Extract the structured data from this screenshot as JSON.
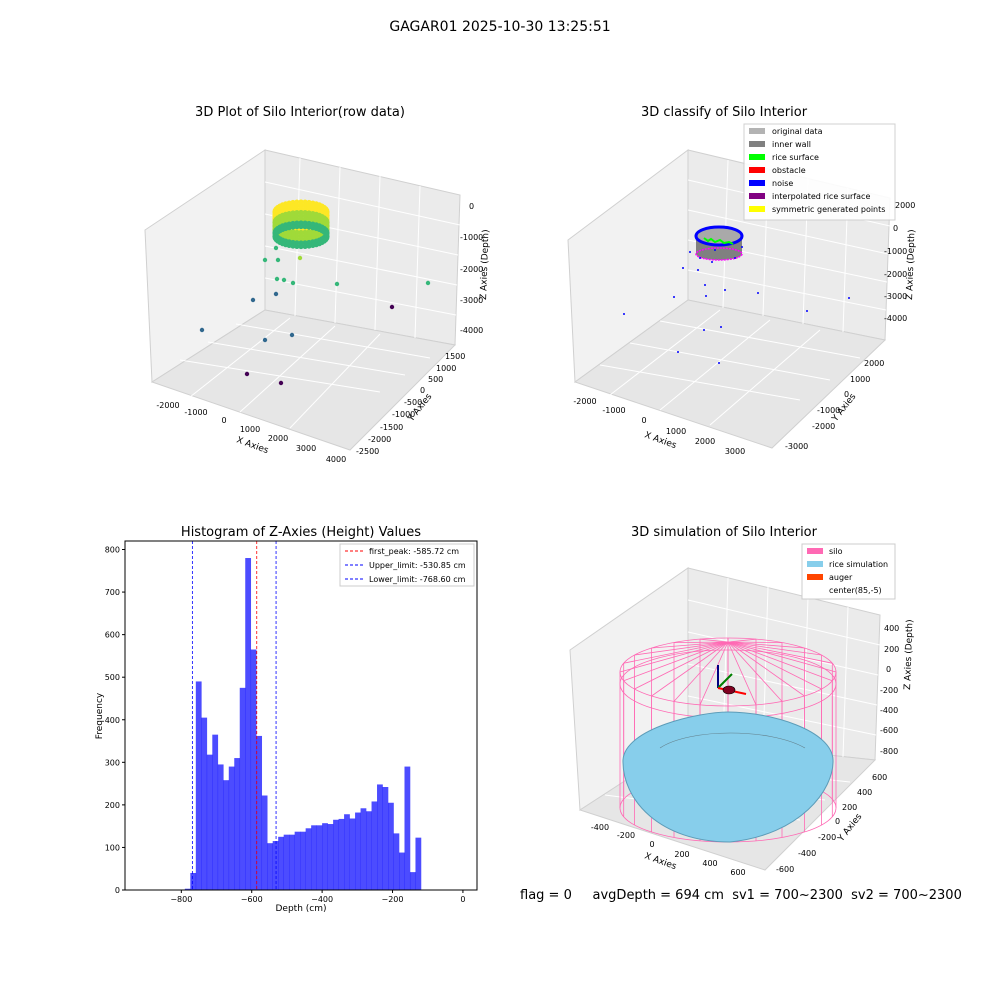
{
  "page_title": "GAGAR01 2025-10-30 13:25:51",
  "footer": {
    "flag": "flag = 0",
    "avg_depth": "avgDepth = 694 cm",
    "sv1": "sv1 = 700~2300",
    "sv2": "sv2 = 700~2300"
  },
  "chart_data": [
    {
      "type": "scatter",
      "title": "3D Plot of Silo Interior(row data)",
      "xlabel": "X Axies",
      "ylabel": "Y Axies",
      "zlabel": "Z Axies (Depth)",
      "x_ticks": [
        "-2000",
        "-1000",
        "0",
        "1000",
        "2000",
        "3000",
        "4000"
      ],
      "y_ticks": [
        "-2500",
        "-2000",
        "-1500",
        "-1000",
        "-500",
        "0",
        "500",
        "1000",
        "1500"
      ],
      "z_ticks": [
        "0",
        "-1000",
        "-2000",
        "-3000",
        "-4000"
      ],
      "colormap": [
        "#440154",
        "#31688e",
        "#35b779",
        "#a0da39",
        "#fde725"
      ]
    },
    {
      "type": "scatter",
      "title": "3D classify of Silo Interior",
      "xlabel": "X Axies",
      "ylabel": "Y Axies",
      "zlabel": "Z Axies (Depth)",
      "x_ticks": [
        "-2000",
        "-1000",
        "0",
        "1000",
        "2000",
        "3000"
      ],
      "y_ticks": [
        "-3000",
        "-2000",
        "-1000",
        "0",
        "1000",
        "2000"
      ],
      "z_ticks": [
        "2000",
        "0",
        "-1000",
        "-2000",
        "-3000",
        "-4000"
      ],
      "legend_position": "top-right",
      "legend": [
        {
          "label": "original data",
          "color": "#b3b3b3"
        },
        {
          "label": "inner wall",
          "color": "#808080"
        },
        {
          "label": "rice surface",
          "color": "#00ff00"
        },
        {
          "label": "obstacle",
          "color": "#ff0000"
        },
        {
          "label": "noise",
          "color": "#0000ff"
        },
        {
          "label": "interpolated rice surface",
          "color": "#800080"
        },
        {
          "label": "symmetric generated points",
          "color": "#ffff00"
        }
      ]
    },
    {
      "type": "bar",
      "title": "Histogram of Z-Axies (Height) Values",
      "xlabel": "Depth (cm)",
      "ylabel": "Frequency",
      "xlim": [
        -960,
        40
      ],
      "ylim": [
        0,
        820
      ],
      "x_ticks": [
        -800,
        -600,
        -400,
        -200,
        0
      ],
      "y_ticks": [
        0,
        100,
        200,
        300,
        400,
        500,
        600,
        700,
        800
      ],
      "bin_start": -790,
      "bin_width": 15.6,
      "values": [
        3,
        40,
        490,
        405,
        318,
        365,
        295,
        258,
        290,
        310,
        475,
        780,
        565,
        362,
        222,
        110,
        115,
        125,
        130,
        130,
        137,
        137,
        145,
        152,
        152,
        157,
        155,
        165,
        167,
        178,
        168,
        182,
        192,
        185,
        208,
        248,
        242,
        205,
        133,
        88,
        290,
        42,
        123
      ],
      "bar_color": "#0000ff",
      "reference_lines": [
        {
          "label": "first_peak: -585.72 cm",
          "value": -585.72,
          "color": "#ff0000"
        },
        {
          "label": "Upper_limit: -530.85 cm",
          "value": -530.85,
          "color": "#0000ff"
        },
        {
          "label": "Lower_limit: -768.60 cm",
          "value": -768.6,
          "color": "#0000ff"
        }
      ],
      "legend_position": "top-right"
    },
    {
      "type": "area",
      "title": "3D simulation of Silo Interior",
      "xlabel": "X Axies",
      "ylabel": "Y Axies",
      "zlabel": "Z Axies (Depth)",
      "x_ticks": [
        "-400",
        "-200",
        "0",
        "200",
        "400",
        "600"
      ],
      "y_ticks": [
        "-600",
        "-400",
        "-200",
        "0",
        "200",
        "400",
        "600"
      ],
      "z_ticks": [
        "400",
        "200",
        "0",
        "-200",
        "-400",
        "-600",
        "-800"
      ],
      "legend_position": "top-right",
      "legend": [
        {
          "label": "silo",
          "color": "#ff69b4"
        },
        {
          "label": "rice simulation",
          "color": "#87ceeb"
        },
        {
          "label": "auger",
          "color": "#ff4500"
        },
        {
          "label": "center(85,-5)",
          "color": "#ffffff"
        }
      ]
    }
  ]
}
